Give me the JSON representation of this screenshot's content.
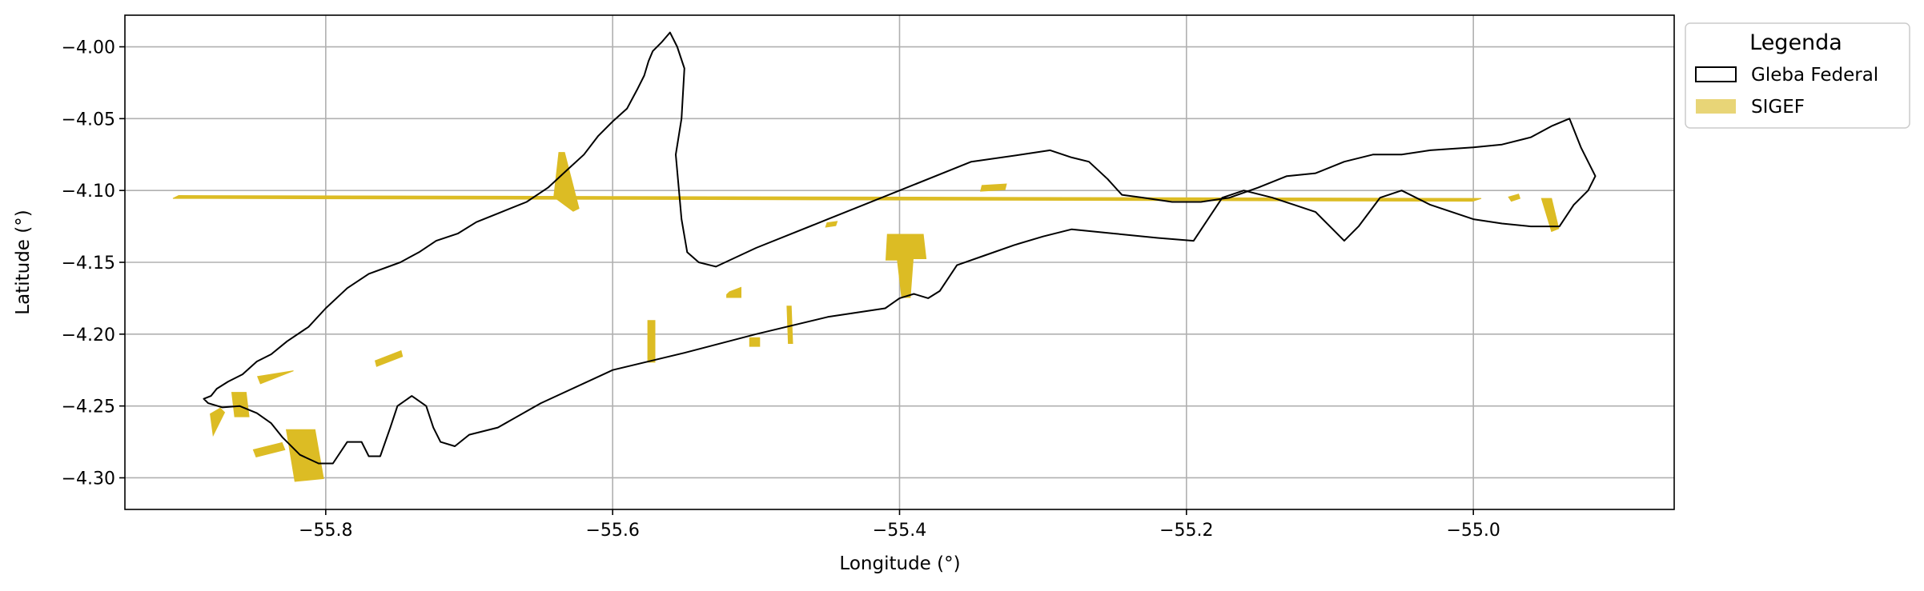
{
  "chart_data": {
    "type": "map",
    "xlabel": "Longitude (°)",
    "ylabel": "Latitude (°)",
    "xlim": [
      -55.94,
      -54.86
    ],
    "ylim": [
      -4.322,
      -3.978
    ],
    "xticks": [
      -55.8,
      -55.6,
      -55.4,
      -55.2,
      -55.0
    ],
    "xtick_labels": [
      "−55.8",
      "−55.6",
      "−55.4",
      "−55.2",
      "−55.0"
    ],
    "yticks": [
      -4.0,
      -4.05,
      -4.1,
      -4.15,
      -4.2,
      -4.25,
      -4.3
    ],
    "ytick_labels": [
      "−4.00",
      "−4.05",
      "−4.10",
      "−4.15",
      "−4.20",
      "−4.25",
      "−4.30"
    ],
    "grid": true,
    "legend": {
      "title": "Legenda",
      "placement": "outside-top-right",
      "entries": [
        {
          "label": "Gleba Federal",
          "style": "outline",
          "edge_color": "#000000",
          "face_color": "#ffffff"
        },
        {
          "label": "SIGEF",
          "style": "fill",
          "face_color": "#e8d577"
        }
      ]
    },
    "layers": {
      "gleba_federal": {
        "name": "Gleba Federal",
        "edge_color": "#000000",
        "boundary": [
          [
            -55.88,
            -4.243
          ],
          [
            -55.876,
            -4.238
          ],
          [
            -55.868,
            -4.233
          ],
          [
            -55.858,
            -4.228
          ],
          [
            -55.848,
            -4.219
          ],
          [
            -55.838,
            -4.214
          ],
          [
            -55.827,
            -4.205
          ],
          [
            -55.812,
            -4.195
          ],
          [
            -55.8,
            -4.182
          ],
          [
            -55.785,
            -4.168
          ],
          [
            -55.77,
            -4.158
          ],
          [
            -55.748,
            -4.15
          ],
          [
            -55.735,
            -4.143
          ],
          [
            -55.723,
            -4.135
          ],
          [
            -55.708,
            -4.13
          ],
          [
            -55.695,
            -4.122
          ],
          [
            -55.68,
            -4.116
          ],
          [
            -55.66,
            -4.108
          ],
          [
            -55.645,
            -4.098
          ],
          [
            -55.632,
            -4.086
          ],
          [
            -55.62,
            -4.075
          ],
          [
            -55.61,
            -4.062
          ],
          [
            -55.6,
            -4.052
          ],
          [
            -55.59,
            -4.043
          ],
          [
            -55.583,
            -4.03
          ],
          [
            -55.578,
            -4.02
          ],
          [
            -55.575,
            -4.01
          ],
          [
            -55.572,
            -4.003
          ],
          [
            -55.566,
            -3.997
          ],
          [
            -55.56,
            -3.99
          ],
          [
            -55.555,
            -4.0
          ],
          [
            -55.55,
            -4.015
          ],
          [
            -55.552,
            -4.05
          ],
          [
            -55.556,
            -4.075
          ],
          [
            -55.552,
            -4.12
          ],
          [
            -55.548,
            -4.143
          ],
          [
            -55.54,
            -4.15
          ],
          [
            -55.528,
            -4.153
          ],
          [
            -55.5,
            -4.14
          ],
          [
            -55.45,
            -4.12
          ],
          [
            -55.4,
            -4.1
          ],
          [
            -55.35,
            -4.08
          ],
          [
            -55.315,
            -4.075
          ],
          [
            -55.295,
            -4.072
          ],
          [
            -55.28,
            -4.077
          ],
          [
            -55.268,
            -4.08
          ],
          [
            -55.255,
            -4.092
          ],
          [
            -55.245,
            -4.103
          ],
          [
            -55.23,
            -4.105
          ],
          [
            -55.21,
            -4.108
          ],
          [
            -55.19,
            -4.108
          ],
          [
            -55.17,
            -4.105
          ],
          [
            -55.15,
            -4.098
          ],
          [
            -55.13,
            -4.09
          ],
          [
            -55.11,
            -4.088
          ],
          [
            -55.09,
            -4.08
          ],
          [
            -55.07,
            -4.075
          ],
          [
            -55.05,
            -4.075
          ],
          [
            -55.03,
            -4.072
          ],
          [
            -55.0,
            -4.07
          ],
          [
            -54.98,
            -4.068
          ],
          [
            -54.96,
            -4.063
          ],
          [
            -54.945,
            -4.055
          ],
          [
            -54.933,
            -4.05
          ],
          [
            -54.925,
            -4.07
          ],
          [
            -54.915,
            -4.09
          ],
          [
            -54.92,
            -4.1
          ],
          [
            -54.93,
            -4.11
          ],
          [
            -54.94,
            -4.125
          ],
          [
            -54.96,
            -4.125
          ],
          [
            -54.98,
            -4.123
          ],
          [
            -55.0,
            -4.12
          ],
          [
            -55.03,
            -4.11
          ],
          [
            -55.05,
            -4.1
          ],
          [
            -55.065,
            -4.105
          ],
          [
            -55.08,
            -4.125
          ],
          [
            -55.09,
            -4.135
          ],
          [
            -55.1,
            -4.125
          ],
          [
            -55.11,
            -4.115
          ],
          [
            -55.125,
            -4.11
          ],
          [
            -55.14,
            -4.105
          ],
          [
            -55.16,
            -4.1
          ],
          [
            -55.175,
            -4.105
          ],
          [
            -55.185,
            -4.12
          ],
          [
            -55.195,
            -4.135
          ],
          [
            -55.22,
            -4.133
          ],
          [
            -55.25,
            -4.13
          ],
          [
            -55.28,
            -4.127
          ],
          [
            -55.3,
            -4.132
          ],
          [
            -55.32,
            -4.138
          ],
          [
            -55.34,
            -4.145
          ],
          [
            -55.36,
            -4.152
          ],
          [
            -55.372,
            -4.17
          ],
          [
            -55.38,
            -4.175
          ],
          [
            -55.39,
            -4.172
          ],
          [
            -55.4,
            -4.175
          ],
          [
            -55.41,
            -4.182
          ],
          [
            -55.45,
            -4.188
          ],
          [
            -55.5,
            -4.2
          ],
          [
            -55.55,
            -4.213
          ],
          [
            -55.6,
            -4.225
          ],
          [
            -55.65,
            -4.248
          ],
          [
            -55.68,
            -4.265
          ],
          [
            -55.7,
            -4.27
          ],
          [
            -55.71,
            -4.278
          ],
          [
            -55.72,
            -4.275
          ],
          [
            -55.725,
            -4.265
          ],
          [
            -55.73,
            -4.25
          ],
          [
            -55.74,
            -4.243
          ],
          [
            -55.75,
            -4.25
          ],
          [
            -55.755,
            -4.265
          ],
          [
            -55.762,
            -4.285
          ],
          [
            -55.77,
            -4.285
          ],
          [
            -55.775,
            -4.275
          ],
          [
            -55.785,
            -4.275
          ],
          [
            -55.795,
            -4.29
          ],
          [
            -55.805,
            -4.29
          ],
          [
            -55.818,
            -4.284
          ],
          [
            -55.83,
            -4.272
          ],
          [
            -55.838,
            -4.262
          ],
          [
            -55.848,
            -4.255
          ],
          [
            -55.86,
            -4.25
          ],
          [
            -55.872,
            -4.251
          ],
          [
            -55.882,
            -4.248
          ],
          [
            -55.885,
            -4.245
          ]
        ]
      },
      "sigef": {
        "name": "SIGEF",
        "face_color": "#dcbc24",
        "parcels": [
          [
            [
              -55.6375,
              -4.0735
            ],
            [
              -55.6335,
              -4.0735
            ],
            [
              -55.6235,
              -4.1125
            ],
            [
              -55.6275,
              -4.1145
            ],
            [
              -55.641,
              -4.1045
            ]
          ],
          [
            [
              -55.3435,
              -4.1005
            ],
            [
              -55.3425,
              -4.0965
            ],
            [
              -55.3255,
              -4.0955
            ],
            [
              -55.3265,
              -4.0995
            ]
          ],
          [
            [
              -55.4515,
              -4.1255
            ],
            [
              -55.4505,
              -4.1225
            ],
            [
              -55.4435,
              -4.1215
            ],
            [
              -55.4445,
              -4.1245
            ]
          ],
          [
            [
              -55.4085,
              -4.1305
            ],
            [
              -55.3835,
              -4.1305
            ],
            [
              -55.3815,
              -4.1475
            ],
            [
              -55.3905,
              -4.1475
            ],
            [
              -55.3925,
              -4.1745
            ],
            [
              -55.3985,
              -4.1745
            ],
            [
              -55.4015,
              -4.1485
            ],
            [
              -55.4095,
              -4.1485
            ]
          ],
          [
            [
              -55.5205,
              -4.1725
            ],
            [
              -55.5185,
              -4.1705
            ],
            [
              -55.5105,
              -4.1675
            ],
            [
              -55.5105,
              -4.1745
            ],
            [
              -55.5205,
              -4.1745
            ]
          ],
          [
            [
              -55.5755,
              -4.1905
            ],
            [
              -55.5705,
              -4.1905
            ],
            [
              -55.5705,
              -4.2195
            ],
            [
              -55.5755,
              -4.2195
            ]
          ],
          [
            [
              -55.5045,
              -4.2025
            ],
            [
              -55.4975,
              -4.2025
            ],
            [
              -55.4975,
              -4.2085
            ],
            [
              -55.5045,
              -4.2085
            ]
          ],
          [
            [
              -55.4785,
              -4.1805
            ],
            [
              -55.4755,
              -4.1805
            ],
            [
              -55.4745,
              -4.2065
            ],
            [
              -55.4775,
              -4.2065
            ]
          ],
          [
            [
              -55.7655,
              -4.2185
            ],
            [
              -55.7475,
              -4.2115
            ],
            [
              -55.7465,
              -4.2155
            ],
            [
              -55.7645,
              -4.2225
            ]
          ],
          [
            [
              -55.8225,
              -4.2255
            ],
            [
              -55.8455,
              -4.2345
            ],
            [
              -55.8475,
              -4.2295
            ],
            [
              -55.8225,
              -4.2255
            ]
          ],
          [
            [
              -55.8655,
              -4.2405
            ],
            [
              -55.8555,
              -4.2405
            ],
            [
              -55.8535,
              -4.2575
            ],
            [
              -55.8635,
              -4.2575
            ]
          ],
          [
            [
              -55.8805,
              -4.2555
            ],
            [
              -55.8735,
              -4.2515
            ],
            [
              -55.8705,
              -4.2545
            ],
            [
              -55.8785,
              -4.2705
            ]
          ],
          [
            [
              -55.8305,
              -4.2755
            ],
            [
              -55.8505,
              -4.2805
            ],
            [
              -55.8485,
              -4.2855
            ],
            [
              -55.8285,
              -4.2805
            ]
          ],
          [
            [
              -55.8275,
              -4.2665
            ],
            [
              -55.8075,
              -4.2665
            ],
            [
              -55.8015,
              -4.3005
            ],
            [
              -55.8215,
              -4.3025
            ]
          ],
          [
            [
              -55.9065,
              -4.1055
            ],
            [
              -55.9025,
              -4.1035
            ],
            [
              -54.9945,
              -4.1055
            ],
            [
              -55.0005,
              -4.1075
            ]
          ],
          [
            [
              -54.9525,
              -4.1055
            ],
            [
              -54.9455,
              -4.1055
            ],
            [
              -54.9405,
              -4.1265
            ],
            [
              -54.9455,
              -4.1285
            ]
          ],
          [
            [
              -54.9755,
              -4.1045
            ],
            [
              -54.9685,
              -4.1025
            ],
            [
              -54.9675,
              -4.1055
            ],
            [
              -54.9735,
              -4.1075
            ]
          ]
        ]
      }
    }
  }
}
